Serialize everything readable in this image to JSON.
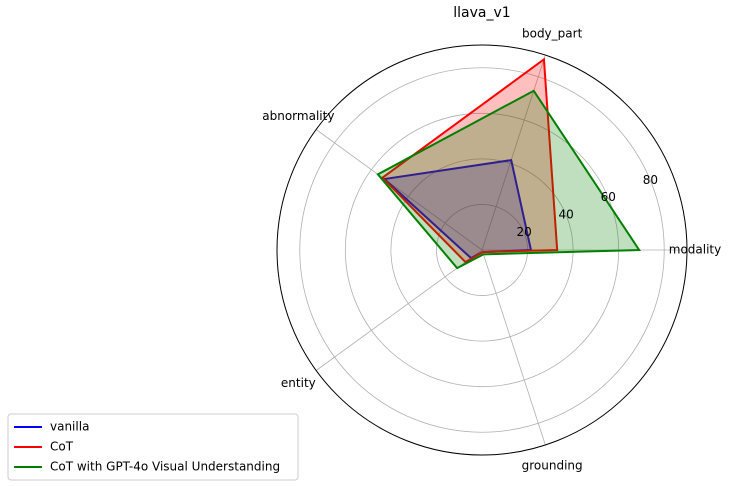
{
  "chart_data": {
    "type": "radar",
    "title": "llava_v1",
    "categories": [
      "modality",
      "body_part",
      "abnormality",
      "entity",
      "grounding"
    ],
    "series": [
      {
        "name": "vanilla",
        "color": "#0000ff",
        "values": [
          21.5,
          41.5,
          53,
          6,
          1
        ]
      },
      {
        "name": "CoT",
        "color": "#ff0000",
        "values": [
          33,
          88,
          54,
          9,
          1
        ]
      },
      {
        "name": "CoT with GPT-4o Visual Understanding",
        "color": "#008000",
        "values": [
          69,
          73.5,
          56.5,
          13.5,
          2
        ]
      }
    ],
    "ylim": [
      0,
      90
    ],
    "yticks": [
      20,
      40,
      60,
      80
    ],
    "grid": true,
    "legend": "lower left"
  }
}
